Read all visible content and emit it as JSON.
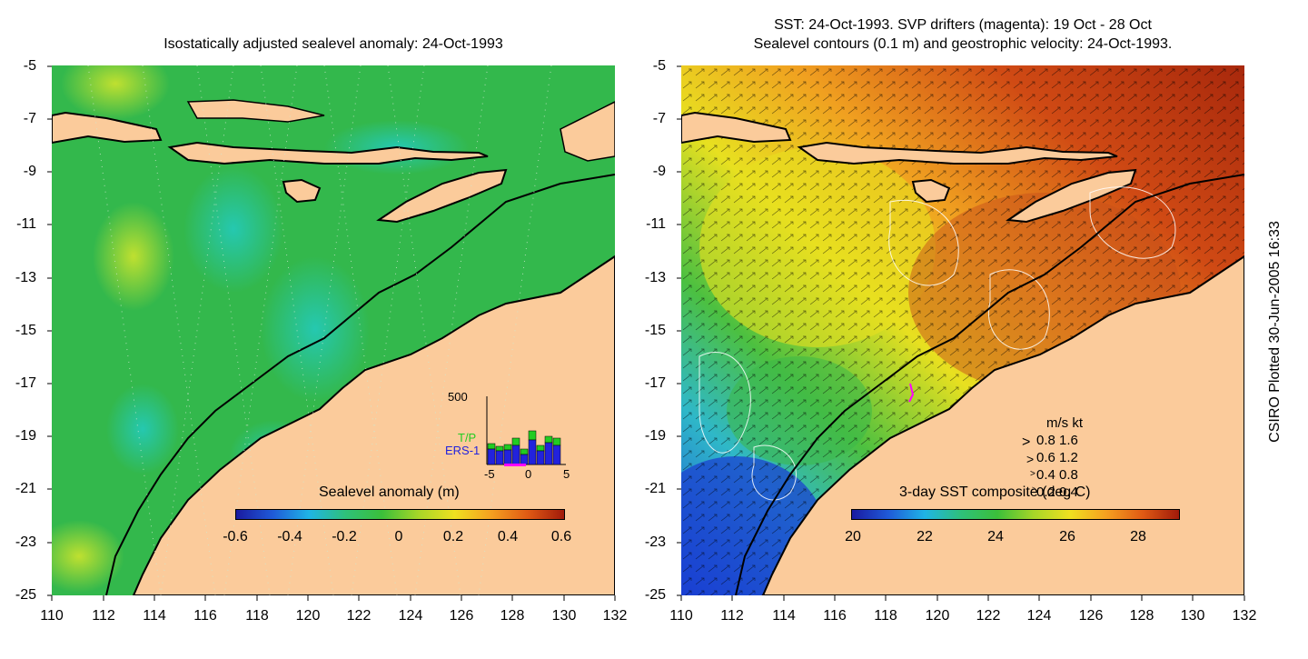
{
  "left_panel": {
    "title": "Isostatically adjusted sealevel anomaly: 24-Oct-1993",
    "colorbar": {
      "label": "Sealevel anomaly (m)",
      "ticks": [
        "-0.6",
        "-0.4",
        "-0.2",
        "0",
        "0.2",
        "0.4",
        "0.6"
      ]
    },
    "inset": {
      "ymax_label": "500",
      "tp_label": "T/P",
      "ers_label": "ERS-1",
      "x_ticks": [
        "-5",
        "0",
        "5"
      ],
      "tp_color": "#22cc22",
      "ers_color": "#2222dd"
    }
  },
  "right_panel": {
    "title_line1": "SST: 24-Oct-1993. SVP drifters (magenta): 19 Oct - 28 Oct",
    "title_line2": "Sealevel contours (0.1 m) and geostrophic velocity: 24-Oct-1993.",
    "colorbar": {
      "label": "3-day SST composite (deg C)",
      "ticks": [
        "20",
        "22",
        "24",
        "26",
        "28"
      ]
    },
    "velocity_legend": {
      "header": "m/s  kt",
      "rows": [
        "0.8  1.6",
        "0.6  1.2",
        "0.4  0.8",
        "0.2  0.4"
      ]
    }
  },
  "axes": {
    "y_ticks": [
      "-5",
      "-7",
      "-9",
      "-11",
      "-13",
      "-15",
      "-17",
      "-19",
      "-21",
      "-23",
      "-25"
    ],
    "x_ticks": [
      "110",
      "112",
      "114",
      "116",
      "118",
      "120",
      "122",
      "124",
      "126",
      "128",
      "130",
      "132"
    ]
  },
  "side_note": "CSIRO Plotted 30-Jun-2005 16:33",
  "colors": {
    "land": "#fbcb9b",
    "sealevel_ocean": "#2fb84a",
    "coast": "#000000"
  }
}
